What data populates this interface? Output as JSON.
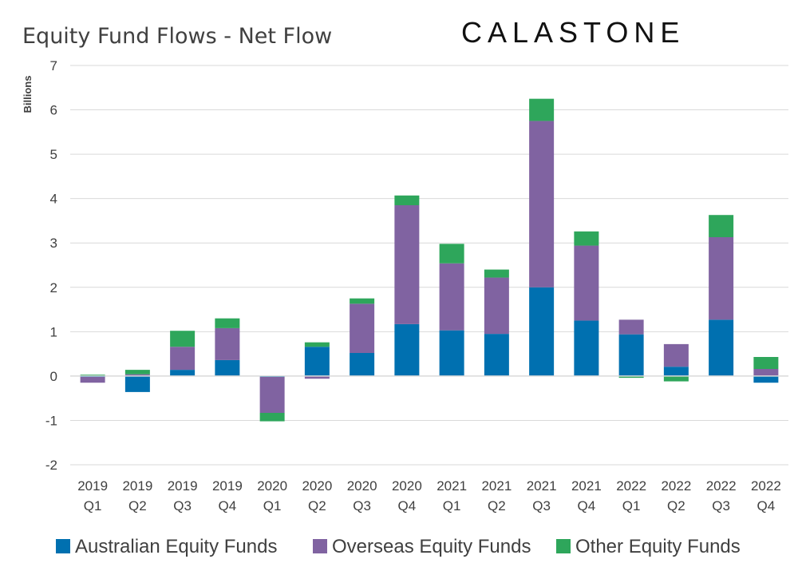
{
  "chart_data": {
    "type": "bar",
    "stacked": true,
    "title": "Equity Fund Flows - Net Flow",
    "brand": "CALASTONE",
    "ylabel": "Billions",
    "ylim": [
      -2,
      7
    ],
    "yticks": [
      7,
      6,
      5,
      4,
      3,
      2,
      1,
      0,
      -1,
      -2
    ],
    "grid": true,
    "legend_position": "bottom",
    "categories": [
      [
        "2019",
        "Q1"
      ],
      [
        "2019",
        "Q2"
      ],
      [
        "2019",
        "Q3"
      ],
      [
        "2019",
        "Q4"
      ],
      [
        "2020",
        "Q1"
      ],
      [
        "2020",
        "Q2"
      ],
      [
        "2020",
        "Q3"
      ],
      [
        "2020",
        "Q4"
      ],
      [
        "2021",
        "Q1"
      ],
      [
        "2021",
        "Q2"
      ],
      [
        "2021",
        "Q3"
      ],
      [
        "2021",
        "Q4"
      ],
      [
        "2022",
        "Q1"
      ],
      [
        "2022",
        "Q2"
      ],
      [
        "2022",
        "Q3"
      ],
      [
        "2022",
        "Q4"
      ]
    ],
    "series": [
      {
        "name": "Australian Equity Funds",
        "color": "#0070b0",
        "values": [
          -0.02,
          -0.36,
          0.14,
          0.36,
          -0.02,
          0.66,
          0.52,
          1.17,
          1.03,
          0.95,
          2.0,
          1.25,
          0.94,
          0.21,
          1.27,
          -0.15
        ]
      },
      {
        "name": "Overseas Equity Funds",
        "color": "#8063a1",
        "values": [
          -0.13,
          0.04,
          0.52,
          0.72,
          -0.81,
          -0.06,
          1.11,
          2.68,
          1.51,
          1.27,
          3.75,
          1.69,
          0.33,
          0.51,
          1.86,
          0.16
        ]
      },
      {
        "name": "Other Equity Funds",
        "color": "#2ea65b",
        "values": [
          0.03,
          0.1,
          0.36,
          0.22,
          -0.19,
          0.1,
          0.12,
          0.22,
          0.44,
          0.18,
          0.5,
          0.32,
          -0.04,
          -0.12,
          0.5,
          0.27
        ]
      }
    ]
  }
}
